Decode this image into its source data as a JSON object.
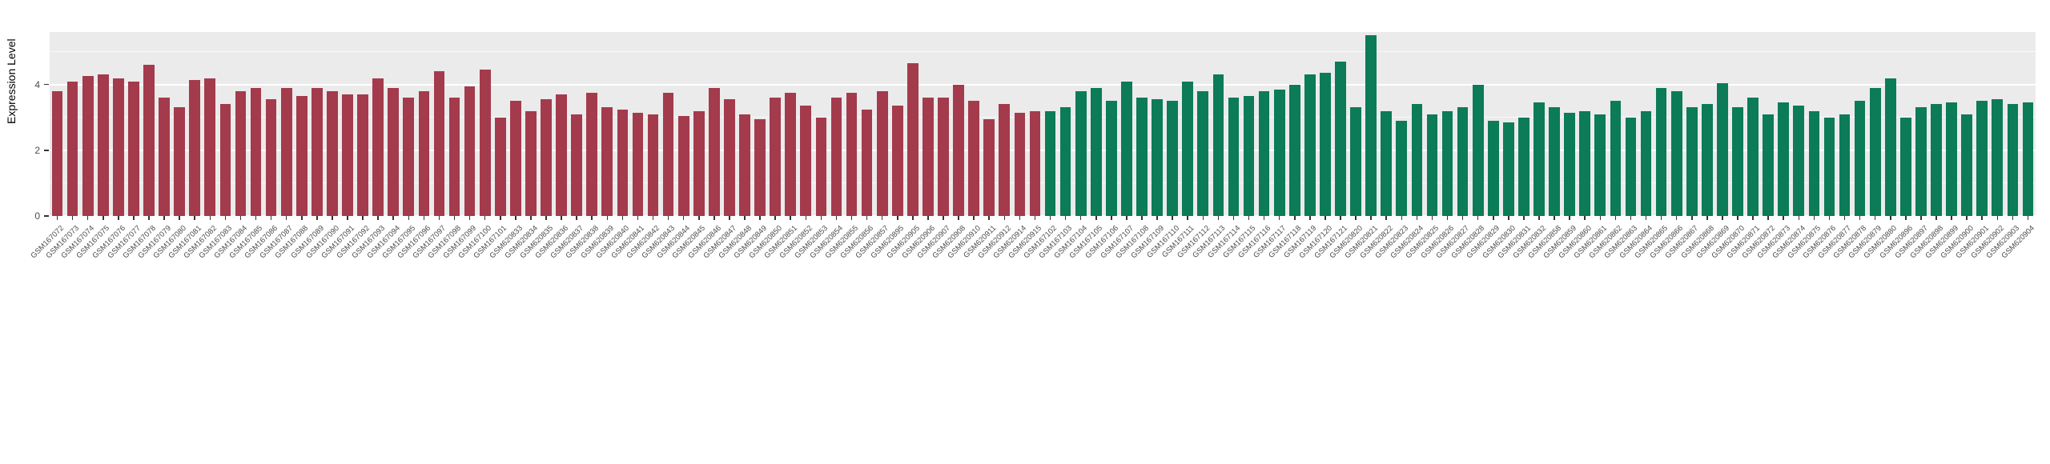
{
  "chart_data": {
    "type": "bar",
    "title": "",
    "xlabel": "",
    "ylabel": "Expression Level",
    "ylim": [
      0,
      5.6
    ],
    "yticks": [
      0,
      2,
      4
    ],
    "yticks_minor": [
      1,
      3,
      5
    ],
    "grid": true,
    "legend": "none",
    "panel_bg": "#ebebeb",
    "grid_color": "#ffffff",
    "axis_text_color": "#4d4d4d",
    "group_colors": {
      "groupA": "#a33b4c",
      "groupB": "#0c7b58"
    },
    "categories": [
      "GSM167072",
      "GSM167073",
      "GSM167074",
      "GSM167075",
      "GSM167076",
      "GSM167077",
      "GSM167078",
      "GSM167079",
      "GSM167080",
      "GSM167081",
      "GSM167082",
      "GSM167083",
      "GSM167084",
      "GSM167085",
      "GSM167086",
      "GSM167087",
      "GSM167088",
      "GSM167089",
      "GSM167090",
      "GSM167091",
      "GSM167092",
      "GSM167093",
      "GSM167094",
      "GSM167095",
      "GSM167096",
      "GSM167097",
      "GSM167098",
      "GSM167099",
      "GSM167100",
      "GSM167101",
      "GSM620833",
      "GSM620834",
      "GSM620835",
      "GSM620836",
      "GSM620837",
      "GSM620838",
      "GSM620839",
      "GSM620840",
      "GSM620841",
      "GSM620842",
      "GSM620843",
      "GSM620844",
      "GSM620845",
      "GSM620846",
      "GSM620847",
      "GSM620848",
      "GSM620849",
      "GSM620850",
      "GSM620851",
      "GSM620852",
      "GSM620853",
      "GSM620854",
      "GSM620855",
      "GSM620856",
      "GSM620857",
      "GSM620895",
      "GSM620905",
      "GSM620906",
      "GSM620907",
      "GSM620908",
      "GSM620910",
      "GSM620911",
      "GSM620912",
      "GSM620914",
      "GSM620915",
      "GSM167102",
      "GSM167103",
      "GSM167104",
      "GSM167105",
      "GSM167106",
      "GSM167107",
      "GSM167108",
      "GSM167109",
      "GSM167110",
      "GSM167111",
      "GSM167112",
      "GSM167113",
      "GSM167114",
      "GSM167115",
      "GSM167116",
      "GSM167117",
      "GSM167118",
      "GSM167119",
      "GSM167120",
      "GSM167121",
      "GSM620820",
      "GSM620821",
      "GSM620822",
      "GSM620823",
      "GSM620824",
      "GSM620825",
      "GSM620826",
      "GSM620827",
      "GSM620828",
      "GSM620829",
      "GSM620830",
      "GSM620831",
      "GSM620832",
      "GSM620858",
      "GSM620859",
      "GSM620860",
      "GSM620861",
      "GSM620862",
      "GSM620863",
      "GSM620864",
      "GSM620865",
      "GSM620866",
      "GSM620867",
      "GSM620868",
      "GSM620869",
      "GSM620870",
      "GSM620871",
      "GSM620872",
      "GSM620873",
      "GSM620874",
      "GSM620875",
      "GSM620876",
      "GSM620877",
      "GSM620878",
      "GSM620879",
      "GSM620880",
      "GSM620896",
      "GSM620897",
      "GSM620898",
      "GSM620899",
      "GSM620900",
      "GSM620901",
      "GSM620902",
      "GSM620903",
      "GSM620904"
    ],
    "values": [
      3.8,
      4.1,
      4.25,
      4.3,
      4.2,
      4.1,
      4.6,
      3.6,
      3.3,
      4.15,
      4.2,
      3.4,
      3.8,
      3.9,
      3.55,
      3.9,
      3.65,
      3.9,
      3.8,
      3.7,
      3.7,
      4.2,
      3.9,
      3.6,
      3.8,
      4.4,
      3.6,
      3.95,
      4.45,
      3.0,
      3.5,
      3.2,
      3.55,
      3.7,
      3.1,
      3.75,
      3.3,
      3.25,
      3.15,
      3.1,
      3.75,
      3.05,
      3.2,
      3.9,
      3.55,
      3.1,
      2.95,
      3.6,
      3.75,
      3.35,
      3.0,
      3.6,
      3.75,
      3.25,
      3.8,
      3.35,
      4.65,
      3.6,
      3.6,
      4.0,
      3.5,
      2.95,
      3.4,
      3.15,
      3.2,
      3.2,
      3.3,
      3.8,
      3.9,
      3.5,
      4.1,
      3.6,
      3.55,
      3.5,
      4.1,
      3.8,
      4.3,
      3.6,
      3.65,
      3.8,
      3.85,
      4.0,
      4.3,
      4.35,
      4.7,
      3.3,
      5.5,
      3.2,
      2.9,
      3.4,
      3.1,
      3.2,
      3.3,
      4.0,
      2.9,
      2.85,
      3.0,
      3.45,
      3.3,
      3.15,
      3.2,
      3.1,
      3.5,
      3.0,
      3.2,
      3.9,
      3.8,
      3.3,
      3.4,
      4.05,
      3.3,
      3.6,
      3.1,
      3.45,
      3.35,
      3.2,
      3.0,
      3.1,
      3.5,
      3.9,
      4.2,
      3.0,
      3.3,
      3.4,
      3.45,
      3.1,
      3.5,
      3.55,
      3.4,
      3.45
    ],
    "groups": [
      "groupA",
      "groupA",
      "groupA",
      "groupA",
      "groupA",
      "groupA",
      "groupA",
      "groupA",
      "groupA",
      "groupA",
      "groupA",
      "groupA",
      "groupA",
      "groupA",
      "groupA",
      "groupA",
      "groupA",
      "groupA",
      "groupA",
      "groupA",
      "groupA",
      "groupA",
      "groupA",
      "groupA",
      "groupA",
      "groupA",
      "groupA",
      "groupA",
      "groupA",
      "groupA",
      "groupA",
      "groupA",
      "groupA",
      "groupA",
      "groupA",
      "groupA",
      "groupA",
      "groupA",
      "groupA",
      "groupA",
      "groupA",
      "groupA",
      "groupA",
      "groupA",
      "groupA",
      "groupA",
      "groupA",
      "groupA",
      "groupA",
      "groupA",
      "groupA",
      "groupA",
      "groupA",
      "groupA",
      "groupA",
      "groupA",
      "groupA",
      "groupA",
      "groupA",
      "groupA",
      "groupA",
      "groupA",
      "groupA",
      "groupA",
      "groupA",
      "groupB",
      "groupB",
      "groupB",
      "groupB",
      "groupB",
      "groupB",
      "groupB",
      "groupB",
      "groupB",
      "groupB",
      "groupB",
      "groupB",
      "groupB",
      "groupB",
      "groupB",
      "groupB",
      "groupB",
      "groupB",
      "groupB",
      "groupB",
      "groupB",
      "groupB",
      "groupB",
      "groupB",
      "groupB",
      "groupB",
      "groupB",
      "groupB",
      "groupB",
      "groupB",
      "groupB",
      "groupB",
      "groupB",
      "groupB",
      "groupB",
      "groupB",
      "groupB",
      "groupB",
      "groupB",
      "groupB",
      "groupB",
      "groupB",
      "groupB",
      "groupB",
      "groupB",
      "groupB",
      "groupB",
      "groupB",
      "groupB",
      "groupB",
      "groupB",
      "groupB",
      "groupB",
      "groupB",
      "groupB",
      "groupB",
      "groupB",
      "groupB",
      "groupB",
      "groupB",
      "groupB",
      "groupB",
      "groupB",
      "groupB",
      "groupB"
    ]
  }
}
